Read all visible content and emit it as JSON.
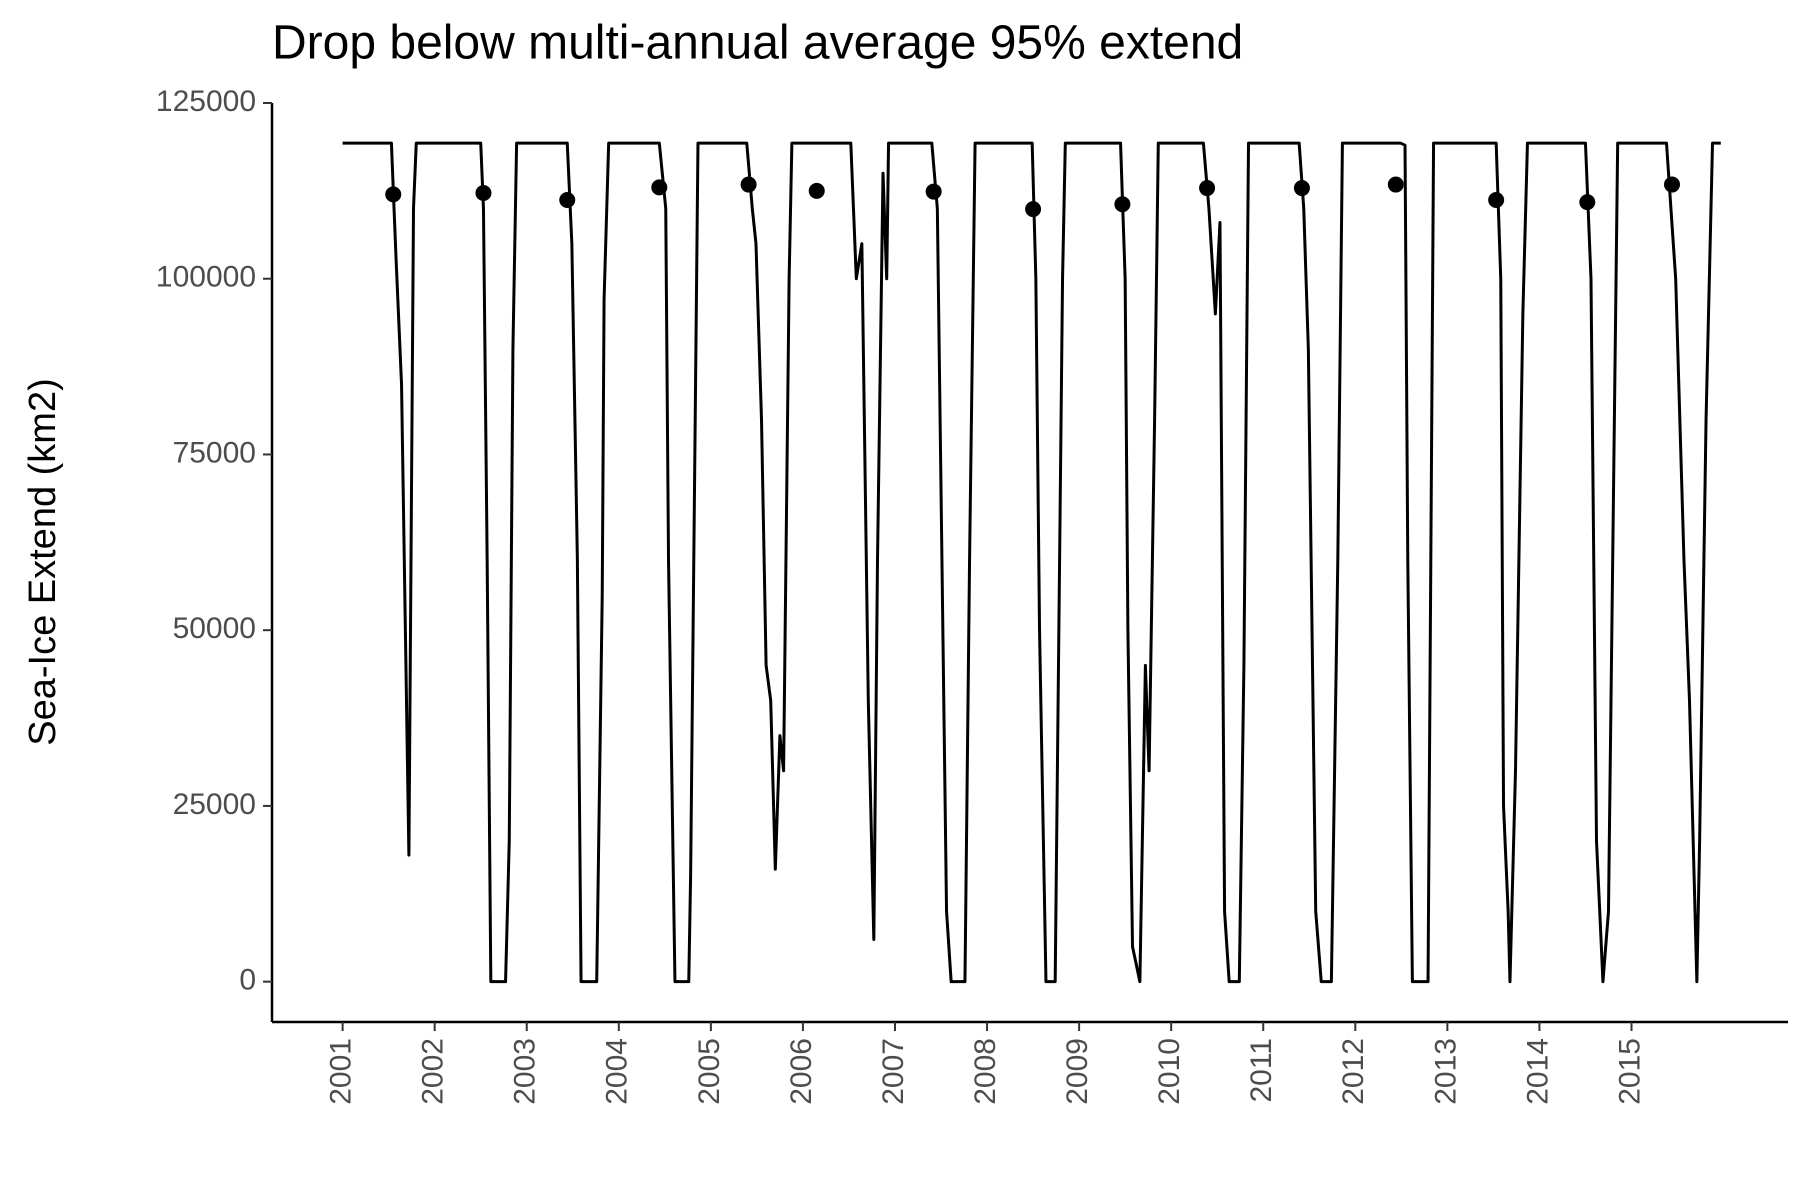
{
  "chart_data": {
    "type": "line",
    "title": "Drop below multi-annual average 95% extend",
    "y_label": "Sea-Ice Extend (km2)",
    "xlim": [
      2000.233,
      2016.7
    ],
    "ylim": [
      -5740,
      125000
    ],
    "xticks": [
      2001,
      2002,
      2003,
      2004,
      2005,
      2006,
      2007,
      2008,
      2009,
      2010,
      2011,
      2012,
      2013,
      2014,
      2015
    ],
    "yticks": [
      0,
      25000,
      50000,
      75000,
      100000,
      125000
    ],
    "grid": false,
    "line": {
      "color": "#000000",
      "x": [
        2001.0,
        2001.53,
        2001.58,
        2001.64,
        2001.72,
        2001.77,
        2001.8,
        2002.5,
        2002.53,
        2002.57,
        2002.61,
        2002.77,
        2002.81,
        2002.85,
        2002.89,
        2003.44,
        2003.49,
        2003.55,
        2003.59,
        2003.76,
        2003.82,
        2003.84,
        2003.89,
        2004.44,
        2004.51,
        2004.54,
        2004.61,
        2004.76,
        2004.78,
        2004.86,
        2005.39,
        2005.45,
        2005.49,
        2005.55,
        2005.6,
        2005.65,
        2005.7,
        2005.75,
        2005.79,
        2005.85,
        2005.88,
        2006.52,
        2006.58,
        2006.64,
        2006.71,
        2006.77,
        2006.81,
        2006.87,
        2006.91,
        2006.93,
        2007.4,
        2007.46,
        2007.51,
        2007.56,
        2007.61,
        2007.76,
        2007.81,
        2007.87,
        2008.49,
        2008.53,
        2008.57,
        2008.64,
        2008.74,
        2008.82,
        2008.85,
        2009.45,
        2009.5,
        2009.53,
        2009.58,
        2009.66,
        2009.72,
        2009.76,
        2009.82,
        2009.86,
        2010.35,
        2010.41,
        2010.48,
        2010.53,
        2010.58,
        2010.63,
        2010.74,
        2010.79,
        2010.84,
        2011.39,
        2011.44,
        2011.49,
        2011.57,
        2011.63,
        2011.74,
        2011.81,
        2011.86,
        2012.49,
        2012.54,
        2012.57,
        2012.62,
        2012.79,
        2012.85,
        2013.53,
        2013.58,
        2013.61,
        2013.66,
        2013.68,
        2013.74,
        2013.82,
        2013.87,
        2014.5,
        2014.56,
        2014.62,
        2014.69,
        2014.75,
        2014.85,
        2015.38,
        2015.48,
        2015.57,
        2015.63,
        2015.71,
        2015.74,
        2015.81,
        2015.88,
        2015.97
      ],
      "values": [
        119300,
        119300,
        103000,
        85000,
        18000,
        110000,
        119300,
        119300,
        110000,
        60000,
        0,
        0,
        20000,
        90000,
        119300,
        119300,
        105000,
        60000,
        0,
        0,
        55000,
        97000,
        119300,
        119300,
        110000,
        60000,
        0,
        0,
        15000,
        119300,
        119300,
        110000,
        105000,
        80000,
        45000,
        40000,
        16000,
        35000,
        30000,
        100000,
        119300,
        119300,
        100000,
        105000,
        40000,
        6000,
        60000,
        115000,
        100000,
        119300,
        119300,
        110000,
        60000,
        10000,
        0,
        0,
        60000,
        119300,
        119300,
        100000,
        50000,
        0,
        0,
        100000,
        119300,
        119300,
        100000,
        50000,
        5000,
        0,
        45000,
        30000,
        80000,
        119300,
        119300,
        110000,
        95000,
        108000,
        10000,
        0,
        0,
        45000,
        119300,
        119300,
        110000,
        90000,
        10000,
        0,
        0,
        60000,
        119300,
        119300,
        119000,
        60000,
        0,
        0,
        119300,
        119300,
        100000,
        25000,
        10000,
        0,
        30000,
        95000,
        119300,
        119300,
        100000,
        20000,
        0,
        10000,
        119300,
        119300,
        100000,
        60000,
        40000,
        0,
        20000,
        80000,
        119300,
        119300
      ]
    },
    "points": {
      "color": "#000000",
      "x": [
        2001.55,
        2002.53,
        2003.44,
        2004.44,
        2005.41,
        2006.15,
        2007.42,
        2008.5,
        2009.47,
        2010.39,
        2011.42,
        2012.44,
        2013.53,
        2014.52,
        2015.44
      ],
      "values": [
        112000,
        112200,
        111200,
        113000,
        113400,
        112500,
        112400,
        109900,
        110600,
        112900,
        112900,
        113400,
        111200,
        110900,
        113400
      ]
    }
  }
}
